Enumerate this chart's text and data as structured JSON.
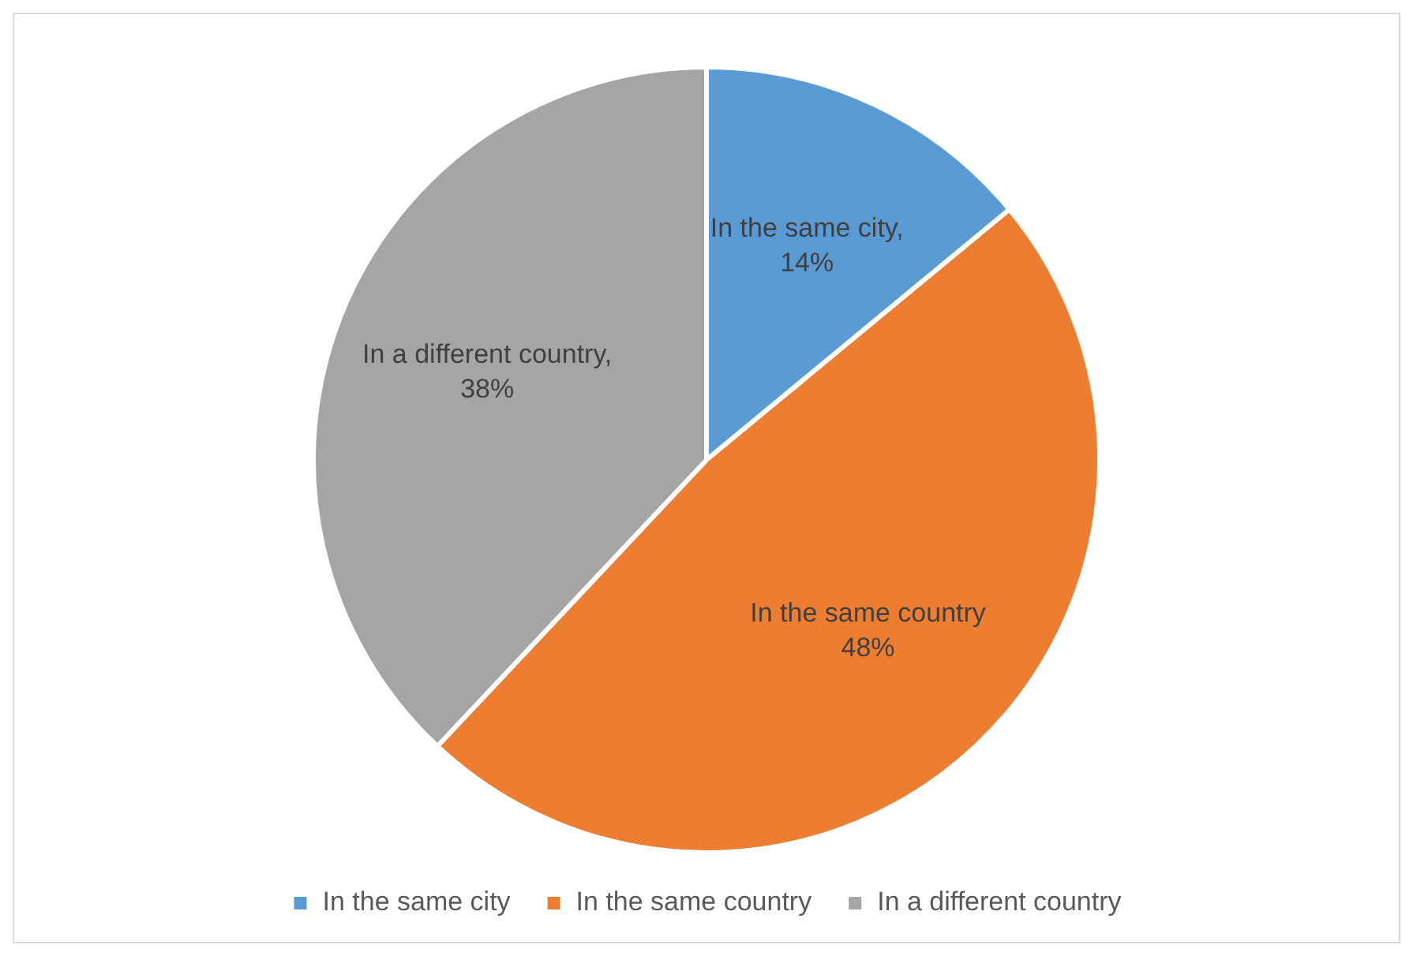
{
  "chart_data": {
    "type": "pie",
    "categories": [
      "In the same city",
      "In the same country",
      "In a different country"
    ],
    "values": [
      14,
      48,
      38
    ],
    "colors": [
      "#5b9bd5",
      "#ed7d31",
      "#a5a5a5"
    ],
    "value_labels": [
      "In the same city, 14%",
      "In the same country 48%",
      "In a different country, 38%"
    ],
    "legend": "bottom"
  }
}
